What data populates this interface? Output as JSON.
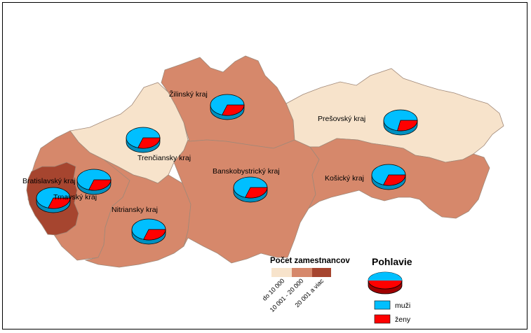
{
  "colors": {
    "low": "#f7e3cb",
    "mid": "#d6886b",
    "high": "#a6452f",
    "men": "#00bfff",
    "women": "#ff0000",
    "border": "#a08878"
  },
  "regions": {
    "bratislava": "Bratislavský kraj",
    "trnava": "Trnavský kraj",
    "trencin": "Trenčiansky kraj",
    "nitra": "Nitriansky kraj",
    "zilina": "Žilinský kraj",
    "banska_bystrica": "Banskobystrický kraj",
    "presov": "Prešovský kraj",
    "kosice": "Košický kraj"
  },
  "legend": {
    "employees_title": "Počet zamestnancov",
    "classes": [
      "do 10 000",
      "10 001 - 20 000",
      "20 001 a viac"
    ],
    "gender_title": "Pohlavie",
    "men": "muži",
    "women": "ženy"
  }
}
